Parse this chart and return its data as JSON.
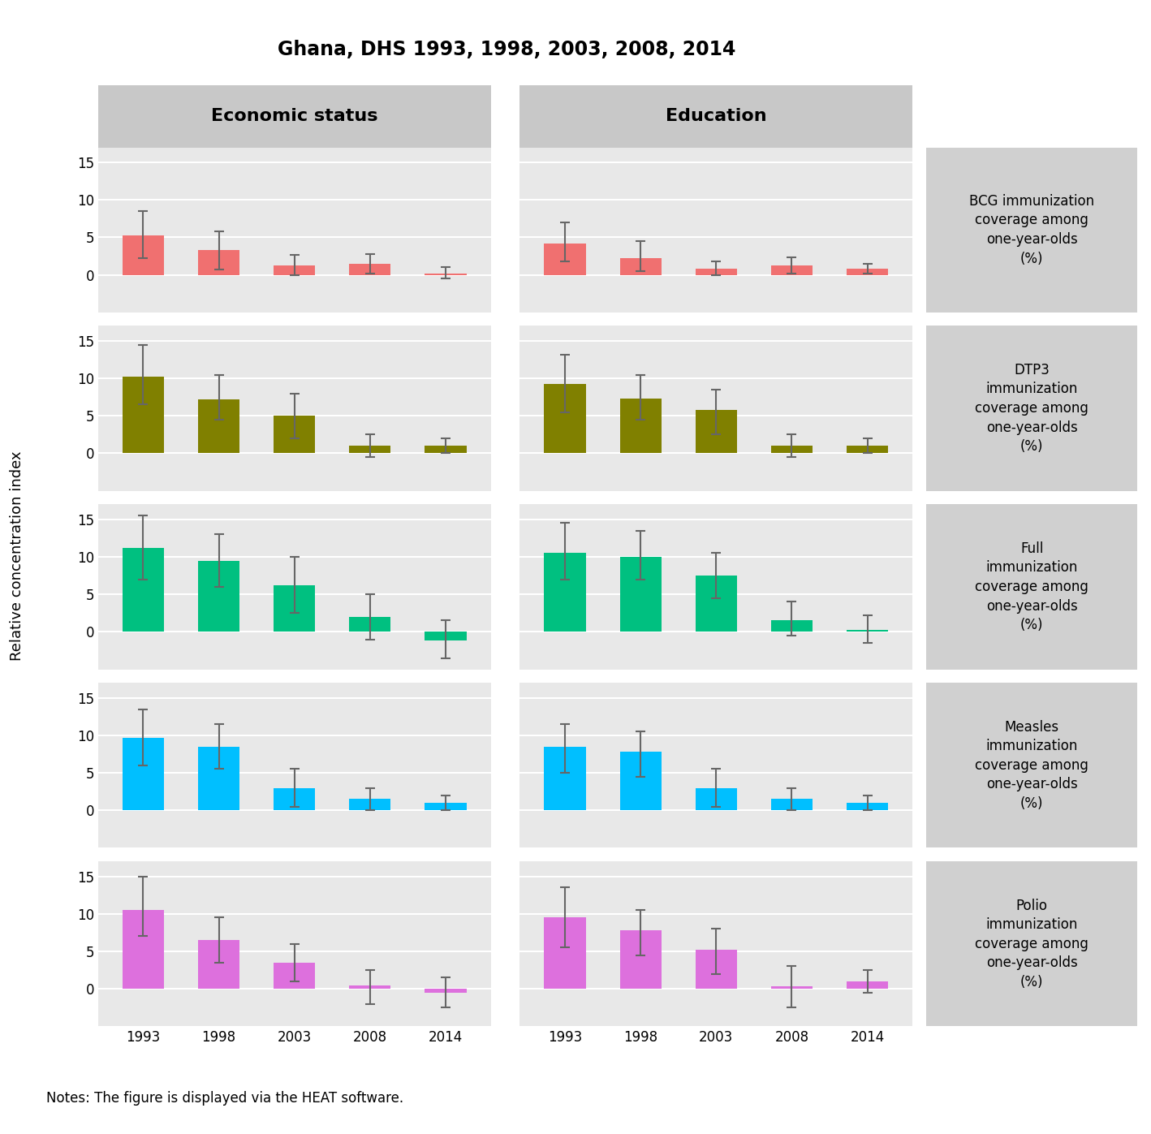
{
  "title": "Ghana, DHS 1993, 1998, 2003, 2008, 2014",
  "ylabel": "Relative concentration index",
  "note": "Notes: The figure is displayed via the HEAT software.",
  "col_headers": [
    "Economic status",
    "Education"
  ],
  "years": [
    "1993",
    "1998",
    "2003",
    "2008",
    "2014"
  ],
  "row_labels": [
    "BCG immunization\ncoverage among\none-year-olds\n(%)",
    "DTP3\nimmunization\ncoverage among\none-year-olds\n(%)",
    "Full\nimmunization\ncoverage among\none-year-olds\n(%)",
    "Measles\nimmunization\ncoverage among\none-year-olds\n(%)",
    "Polio\nimmunization\ncoverage among\none-year-olds\n(%)"
  ],
  "bar_colors": [
    "#F07070",
    "#808000",
    "#00C080",
    "#00BFFF",
    "#DD70DD"
  ],
  "data": {
    "economic": [
      {
        "values": [
          5.3,
          3.3,
          1.3,
          1.5,
          0.15
        ],
        "ci_low": [
          2.2,
          0.7,
          0.0,
          0.2,
          -0.5
        ],
        "ci_high": [
          8.5,
          5.8,
          2.7,
          2.8,
          1.0
        ]
      },
      {
        "values": [
          10.2,
          7.2,
          5.0,
          1.0,
          1.0
        ],
        "ci_low": [
          6.5,
          4.5,
          2.0,
          -0.5,
          0.0
        ],
        "ci_high": [
          14.5,
          10.5,
          8.0,
          2.5,
          2.0
        ]
      },
      {
        "values": [
          11.2,
          9.5,
          6.2,
          2.0,
          -1.2
        ],
        "ci_low": [
          7.0,
          6.0,
          2.5,
          -1.0,
          -3.5
        ],
        "ci_high": [
          15.5,
          13.0,
          10.0,
          5.0,
          1.5
        ]
      },
      {
        "values": [
          9.7,
          8.5,
          3.0,
          1.5,
          1.0
        ],
        "ci_low": [
          6.0,
          5.5,
          0.5,
          0.0,
          0.0
        ],
        "ci_high": [
          13.5,
          11.5,
          5.5,
          3.0,
          2.0
        ]
      },
      {
        "values": [
          10.5,
          6.5,
          3.5,
          0.5,
          -0.5
        ],
        "ci_low": [
          7.0,
          3.5,
          1.0,
          -2.0,
          -2.5
        ],
        "ci_high": [
          15.0,
          9.5,
          6.0,
          2.5,
          1.5
        ]
      }
    ],
    "education": [
      {
        "values": [
          4.2,
          2.2,
          0.8,
          1.2,
          0.8
        ],
        "ci_low": [
          1.8,
          0.5,
          0.0,
          0.2,
          0.2
        ],
        "ci_high": [
          7.0,
          4.5,
          1.8,
          2.3,
          1.5
        ]
      },
      {
        "values": [
          9.3,
          7.3,
          5.8,
          1.0,
          1.0
        ],
        "ci_low": [
          5.5,
          4.5,
          2.5,
          -0.5,
          0.0
        ],
        "ci_high": [
          13.2,
          10.5,
          8.5,
          2.5,
          2.0
        ]
      },
      {
        "values": [
          10.5,
          10.0,
          7.5,
          1.5,
          0.3
        ],
        "ci_low": [
          7.0,
          7.0,
          4.5,
          -0.5,
          -1.5
        ],
        "ci_high": [
          14.5,
          13.5,
          10.5,
          4.0,
          2.2
        ]
      },
      {
        "values": [
          8.5,
          7.8,
          3.0,
          1.5,
          1.0
        ],
        "ci_low": [
          5.0,
          4.5,
          0.5,
          0.0,
          0.0
        ],
        "ci_high": [
          11.5,
          10.5,
          5.5,
          3.0,
          2.0
        ]
      },
      {
        "values": [
          9.5,
          7.8,
          5.2,
          0.3,
          1.0
        ],
        "ci_low": [
          5.5,
          4.5,
          2.0,
          -2.5,
          -0.5
        ],
        "ci_high": [
          13.5,
          10.5,
          8.0,
          3.0,
          2.5
        ]
      }
    ]
  },
  "ylim": [
    -5,
    17
  ],
  "yticks": [
    0,
    5,
    10,
    15
  ],
  "panel_bg": "#E8E8E8",
  "plot_bg": "#E8E8E8",
  "header_bg": "#C8C8C8",
  "label_bg": "#D0D0D0",
  "grid_color": "#FFFFFF",
  "bar_width": 0.55,
  "title_fontsize": 17,
  "label_fontsize": 13,
  "tick_fontsize": 12,
  "header_fontsize": 16,
  "note_fontsize": 12,
  "row_label_fontsize": 12
}
